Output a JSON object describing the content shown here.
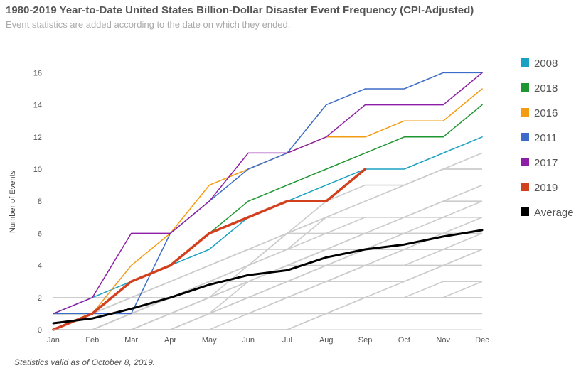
{
  "title": "1980-2019 Year-to-Date United States Billion-Dollar Disaster Event Frequency (CPI-Adjusted)",
  "subtitle": "Event statistics are added according to the date on which they ended.",
  "footnote": "Statistics valid as of October 8, 2019.",
  "chart_data": {
    "type": "line",
    "title": "1980-2019 Year-to-Date United States Billion-Dollar Disaster Event Frequency (CPI-Adjusted)",
    "xlabel": "",
    "ylabel": "Number of Events",
    "categories": [
      "Jan",
      "Feb",
      "Mar",
      "Apr",
      "May",
      "Jun",
      "Jul",
      "Aug",
      "Sep",
      "Oct",
      "Nov",
      "Dec"
    ],
    "ylim": [
      0,
      17
    ],
    "yticks": [
      0,
      2,
      4,
      6,
      8,
      10,
      12,
      14,
      16
    ],
    "grid": false,
    "legend_position": "right",
    "highlight_series": [
      {
        "name": "2008",
        "color": "#1aa0c0",
        "width": 1.5,
        "values": [
          1,
          2,
          3,
          4,
          5,
          7,
          8,
          9,
          10,
          10,
          11,
          12
        ]
      },
      {
        "name": "2018",
        "color": "#1e9632",
        "width": 1.5,
        "values": [
          1,
          1,
          3,
          4,
          6,
          8,
          9,
          10,
          11,
          12,
          12,
          14
        ]
      },
      {
        "name": "2016",
        "color": "#f39c12",
        "width": 1.5,
        "values": [
          1,
          1,
          4,
          6,
          9,
          10,
          11,
          12,
          12,
          13,
          13,
          15
        ]
      },
      {
        "name": "2011",
        "color": "#3d6cc8",
        "width": 1.5,
        "values": [
          1,
          1,
          1,
          6,
          8,
          10,
          11,
          14,
          15,
          15,
          16,
          16
        ]
      },
      {
        "name": "2017",
        "color": "#8e1ea6",
        "width": 1.5,
        "values": [
          1,
          2,
          6,
          6,
          8,
          11,
          11,
          12,
          14,
          14,
          14,
          16
        ]
      },
      {
        "name": "2019",
        "color": "#d2401e",
        "width": 3.5,
        "values": [
          0,
          1,
          3,
          4,
          6,
          7,
          8,
          8,
          10
        ]
      },
      {
        "name": "Average",
        "color": "#000000",
        "width": 3,
        "values": [
          0.4,
          0.7,
          1.3,
          2.0,
          2.8,
          3.4,
          3.7,
          4.5,
          5.0,
          5.3,
          5.8,
          6.2
        ]
      }
    ],
    "background_series": [
      {
        "color": "#cccccc",
        "values": [
          2,
          2,
          2,
          2,
          2,
          2,
          2,
          2,
          2,
          2,
          2,
          2
        ]
      },
      {
        "color": "#cccccc",
        "values": [
          1,
          1,
          1,
          1,
          1,
          1,
          1,
          1,
          1,
          1,
          1,
          1
        ]
      },
      {
        "color": "#cccccc",
        "values": [
          0,
          0,
          0,
          0,
          0,
          0,
          0,
          1,
          2,
          2,
          3,
          3
        ]
      },
      {
        "color": "#cccccc",
        "values": [
          0,
          0,
          0,
          0,
          1,
          2,
          2,
          2,
          2,
          2,
          2,
          3
        ]
      },
      {
        "color": "#cccccc",
        "values": [
          0,
          0,
          1,
          1,
          2,
          3,
          3,
          3,
          3,
          3,
          4,
          5
        ]
      },
      {
        "color": "#cccccc",
        "values": [
          0,
          1,
          1,
          2,
          3,
          3,
          4,
          4,
          4,
          5,
          5,
          5
        ]
      },
      {
        "color": "#cccccc",
        "values": [
          0,
          0,
          0,
          1,
          2,
          3,
          4,
          5,
          5,
          5,
          5,
          5
        ]
      },
      {
        "color": "#cccccc",
        "values": [
          0,
          0,
          0,
          0,
          1,
          2,
          3,
          4,
          5,
          6,
          7,
          7
        ]
      },
      {
        "color": "#cccccc",
        "values": [
          0,
          1,
          2,
          3,
          4,
          5,
          5,
          5,
          5,
          5,
          5,
          5
        ]
      },
      {
        "color": "#cccccc",
        "values": [
          0,
          0,
          1,
          1,
          2,
          2,
          3,
          4,
          5,
          5,
          6,
          6
        ]
      },
      {
        "color": "#cccccc",
        "values": [
          0,
          0,
          0,
          1,
          2,
          3,
          4,
          5,
          6,
          7,
          8,
          9
        ]
      },
      {
        "color": "#cccccc",
        "values": [
          0,
          0,
          1,
          2,
          3,
          4,
          5,
          6,
          6,
          7,
          8,
          8
        ]
      },
      {
        "color": "#cccccc",
        "values": [
          0,
          0,
          0,
          0,
          0,
          1,
          2,
          3,
          4,
          5,
          5,
          5
        ]
      },
      {
        "color": "#cccccc",
        "values": [
          0,
          0,
          0,
          0,
          0,
          0,
          0,
          1,
          2,
          3,
          4,
          5
        ]
      },
      {
        "color": "#cccccc",
        "values": [
          0,
          0,
          1,
          2,
          3,
          4,
          5,
          7,
          7,
          7,
          7,
          8
        ]
      },
      {
        "color": "#cccccc",
        "values": [
          1,
          1,
          2,
          3,
          4,
          5,
          6,
          7,
          8,
          9,
          10,
          10
        ]
      },
      {
        "color": "#cccccc",
        "values": [
          0,
          1,
          2,
          3,
          4,
          5,
          6,
          7,
          8,
          9,
          10,
          11
        ]
      },
      {
        "color": "#cccccc",
        "values": [
          0,
          0,
          0,
          1,
          2,
          4,
          6,
          6,
          7,
          7,
          7,
          7
        ]
      },
      {
        "color": "#cccccc",
        "values": [
          0,
          0,
          0,
          0,
          1,
          2,
          3,
          4,
          4,
          4,
          4,
          4
        ]
      },
      {
        "color": "#cccccc",
        "values": [
          0,
          0,
          1,
          2,
          3,
          4,
          6,
          8,
          9,
          9,
          10,
          10
        ]
      },
      {
        "color": "#cccccc",
        "values": [
          0,
          0,
          0,
          1,
          1,
          3,
          4,
          5,
          5,
          6,
          6,
          7
        ]
      },
      {
        "color": "#cccccc",
        "values": [
          0,
          1,
          1,
          2,
          3,
          3,
          3,
          3,
          4,
          4,
          4,
          4
        ]
      },
      {
        "color": "#cccccc",
        "values": [
          0,
          0,
          0,
          0,
          1,
          1,
          2,
          3,
          4,
          4,
          5,
          6
        ]
      },
      {
        "color": "#cccccc",
        "values": [
          0,
          0,
          1,
          1,
          2,
          3,
          4,
          5,
          6,
          6,
          6,
          6
        ]
      }
    ]
  }
}
